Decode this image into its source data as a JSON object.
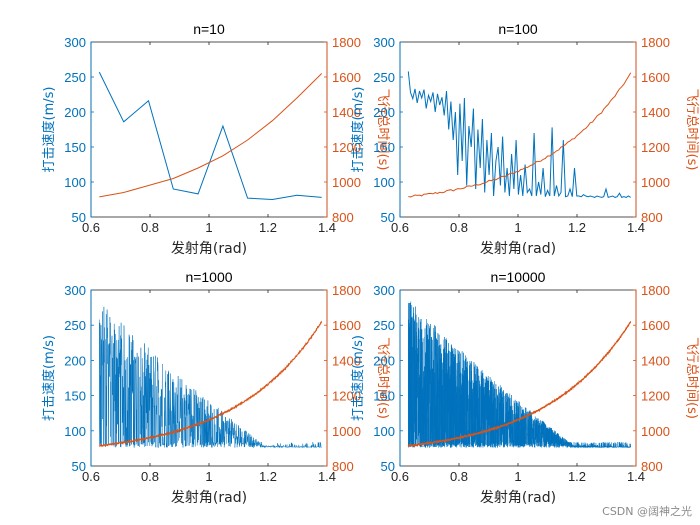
{
  "watermark": "CSDN @阔神之光",
  "colors": {
    "speed": "#0072bd",
    "time": "#d95319",
    "axis": "#262626"
  },
  "chart_data": [
    {
      "type": "line",
      "title": "n=10",
      "xlabel": "发射角(rad)",
      "ylabel_left": "打击速度(m/s)",
      "ylabel_right": "飞行总时间(s)",
      "xlim": [
        0.6,
        1.4
      ],
      "ylim_left": [
        50,
        300
      ],
      "ylim_right": [
        800,
        1800
      ],
      "xticks": [
        "0.6",
        "0.8",
        "1",
        "1.2",
        "1.4"
      ],
      "yticks_left": [
        "50",
        "100",
        "150",
        "200",
        "250",
        "300"
      ],
      "yticks_right": [
        "800",
        "1000",
        "1200",
        "1400",
        "1600",
        "1800"
      ],
      "series": [
        {
          "axis": "left",
          "x": [
            0.628,
            0.711,
            0.795,
            0.879,
            0.963,
            1.047,
            1.131,
            1.215,
            1.298,
            1.382
          ],
          "y": [
            257,
            186,
            216,
            90,
            83,
            180,
            77,
            75,
            81,
            78
          ]
        },
        {
          "axis": "right",
          "x": [
            0.628,
            0.711,
            0.795,
            0.879,
            0.963,
            1.047,
            1.131,
            1.215,
            1.298,
            1.382
          ],
          "y": [
            915,
            940,
            980,
            1020,
            1080,
            1150,
            1240,
            1350,
            1480,
            1620
          ]
        }
      ]
    },
    {
      "type": "line",
      "title": "n=100",
      "xlabel": "发射角(rad)",
      "ylabel_left": "打击速度(m/s)",
      "ylabel_right": "飞行总时间(s)",
      "xlim": [
        0.6,
        1.4
      ],
      "ylim_left": [
        50,
        300
      ],
      "ylim_right": [
        800,
        1800
      ],
      "xticks": [
        "0.6",
        "0.8",
        "1",
        "1.2",
        "1.4"
      ],
      "yticks_left": [
        "50",
        "100",
        "150",
        "200",
        "250",
        "300"
      ],
      "yticks_right": [
        "800",
        "1000",
        "1200",
        "1400",
        "1600",
        "1800"
      ],
      "series": [
        {
          "axis": "left",
          "points": 100,
          "x_range": [
            0.628,
            1.382
          ],
          "y": [
            258,
            228,
            219,
            233,
            213,
            230,
            220,
            232,
            205,
            224,
            215,
            228,
            200,
            226,
            210,
            221,
            195,
            230,
            175,
            215,
            160,
            200,
            110,
            212,
            130,
            220,
            95,
            180,
            150,
            205,
            90,
            175,
            120,
            190,
            85,
            160,
            110,
            170,
            80,
            130,
            150,
            95,
            165,
            85,
            120,
            80,
            140,
            90,
            160,
            82,
            110,
            80,
            125,
            85,
            90,
            80,
            170,
            80,
            100,
            82,
            120,
            79,
            88,
            80,
            178,
            80,
            95,
            80,
            85,
            160,
            79,
            80,
            90,
            79,
            120,
            80,
            80,
            79,
            82,
            80,
            79,
            80,
            79,
            78,
            80,
            79,
            78,
            79,
            90,
            78,
            79,
            80,
            78,
            79,
            84,
            78,
            79,
            78,
            80,
            78
          ]
        },
        {
          "axis": "right",
          "points": 100,
          "x_range": [
            0.628,
            1.382
          ],
          "note_shape": "exponential rise with noise",
          "y_start": 915,
          "y_end": 1620
        }
      ]
    },
    {
      "type": "line",
      "title": "n=1000",
      "xlabel": "发射角(rad)",
      "ylabel_left": "打击速度(m/s)",
      "ylabel_right": "飞行总时间(s)",
      "xlim": [
        0.6,
        1.4
      ],
      "ylim_left": [
        50,
        300
      ],
      "ylim_right": [
        800,
        1800
      ],
      "xticks": [
        "0.6",
        "0.8",
        "1",
        "1.2",
        "1.4"
      ],
      "yticks_left": [
        "50",
        "100",
        "150",
        "200",
        "250",
        "300"
      ],
      "yticks_right": [
        "800",
        "1000",
        "1200",
        "1400",
        "1600",
        "1800"
      ],
      "series": [
        {
          "axis": "left",
          "points": 1000,
          "x_range": [
            0.628,
            1.382
          ],
          "y_start": 258,
          "y_floor": 76
        },
        {
          "axis": "right",
          "points": 1000,
          "x_range": [
            0.628,
            1.382
          ],
          "y_start": 915,
          "y_end": 1620
        }
      ]
    },
    {
      "type": "line",
      "title": "n=10000",
      "xlabel": "发射角(rad)",
      "ylabel_left": "打击速度(m/s)",
      "ylabel_right": "飞行总时间(s)",
      "xlim": [
        0.6,
        1.4
      ],
      "ylim_left": [
        50,
        300
      ],
      "ylim_right": [
        800,
        1800
      ],
      "xticks": [
        "0.6",
        "0.8",
        "1",
        "1.2",
        "1.4"
      ],
      "yticks_left": [
        "50",
        "100",
        "150",
        "200",
        "250",
        "300"
      ],
      "yticks_right": [
        "800",
        "1000",
        "1200",
        "1400",
        "1600",
        "1800"
      ],
      "series": [
        {
          "axis": "left",
          "points": 10000,
          "x_range": [
            0.628,
            1.382
          ],
          "y_start": 258,
          "y_floor": 76
        },
        {
          "axis": "right",
          "points": 10000,
          "x_range": [
            0.628,
            1.382
          ],
          "y_start": 915,
          "y_end": 1620
        }
      ]
    }
  ]
}
